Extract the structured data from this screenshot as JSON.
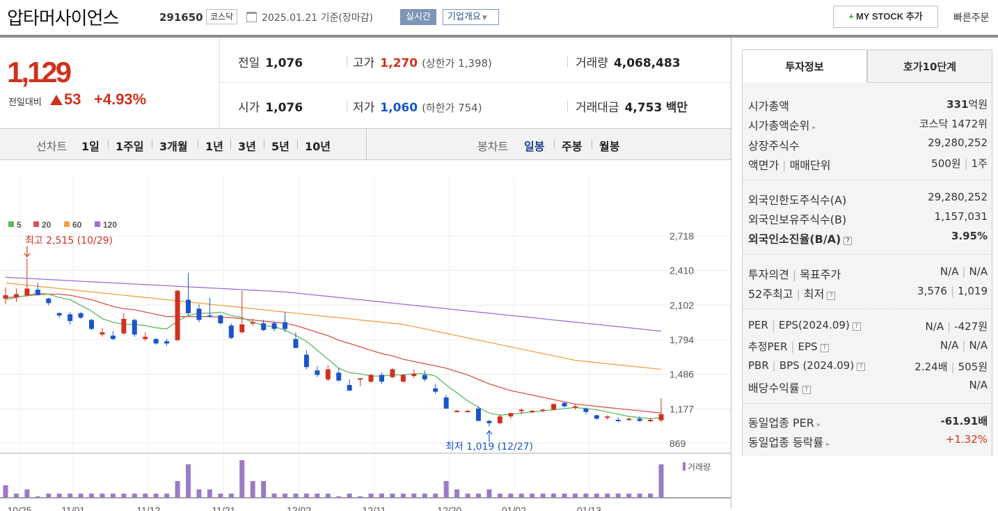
{
  "header": {
    "stock_name": "압타머사이언스",
    "stock_code": "291650",
    "market_badge": "코스닥",
    "date": "2025.01.21 기준(장마감)",
    "realtime_label": "실시간",
    "company_label": "기업개요",
    "mystock_label": "MY STOCK 추가",
    "quick_order_label": "빠른주문"
  },
  "price": {
    "current": "1,129",
    "change_label": "전일대비",
    "change_value": "53",
    "change_pct": "+4.93%",
    "color_up": "#d0311e",
    "color_down": "#1a55c8"
  },
  "quotes": {
    "prev_close_label": "전일",
    "prev_close": "1,076",
    "high_label": "고가",
    "high": "1,270",
    "upper_limit": "(상한가 1,398)",
    "volume_label": "거래량",
    "volume": "4,068,483",
    "open_label": "시가",
    "open": "1,076",
    "low_label": "저가",
    "low": "1,060",
    "lower_limit": "(하한가 754)",
    "amount_label": "거래대금",
    "amount": "4,753",
    "amount_unit": "백만"
  },
  "controls": {
    "line_chart_label": "선차트",
    "periods": [
      "1일",
      "1주일",
      "3개월",
      "1년",
      "3년",
      "5년",
      "10년"
    ],
    "candle_label": "봉차트",
    "candle_types": [
      "일봉",
      "주봉",
      "월봉"
    ],
    "selected_candle": "일봉"
  },
  "chart_data": {
    "type": "candlestick",
    "legend": [
      {
        "name": "5",
        "color": "#5cb85c"
      },
      {
        "name": "20",
        "color": "#d9534f"
      },
      {
        "name": "60",
        "color": "#f0a040"
      },
      {
        "name": "120",
        "color": "#9b6fd6"
      }
    ],
    "y_ticks": [
      "2,718",
      "2,410",
      "2,102",
      "1,794",
      "1,486",
      "1,177",
      "869"
    ],
    "y_tick_values": [
      2718,
      2410,
      2102,
      1794,
      1486,
      1177,
      869
    ],
    "x_ticks": [
      "10/25",
      "11/01",
      "11/12",
      "11/21",
      "12/02",
      "12/11",
      "12/20",
      "01/02",
      "01/13"
    ],
    "annotation_high": "최고 2,515 (10/29)",
    "annotation_low": "최저 1,019 (12/27)",
    "volume_label": "거래량",
    "candles": [
      [
        2160,
        2260,
        2110,
        2190
      ],
      [
        2170,
        2250,
        2130,
        2200
      ],
      [
        2190,
        2515,
        2180,
        2250
      ],
      [
        2240,
        2300,
        2190,
        2190
      ],
      [
        2160,
        2170,
        2100,
        2120
      ],
      [
        2030,
        2040,
        1990,
        2010
      ],
      [
        2020,
        2040,
        1930,
        1960
      ],
      [
        2030,
        2040,
        1980,
        1990
      ],
      [
        1970,
        1980,
        1880,
        1890
      ],
      [
        1840,
        1900,
        1820,
        1860
      ],
      [
        1830,
        1870,
        1790,
        1800
      ],
      [
        1850,
        2030,
        1840,
        1980
      ],
      [
        1970,
        1980,
        1820,
        1840
      ],
      [
        1800,
        1860,
        1780,
        1820
      ],
      [
        1800,
        1810,
        1750,
        1760
      ],
      [
        1780,
        1800,
        1740,
        1760
      ],
      [
        1790,
        2240,
        1780,
        2230
      ],
      [
        2150,
        2390,
        2010,
        2030
      ],
      [
        2070,
        2110,
        1950,
        1970
      ],
      [
        2010,
        2170,
        1990,
        2000
      ],
      [
        2010,
        2020,
        1930,
        1940
      ],
      [
        1920,
        1940,
        1800,
        1810
      ],
      [
        1860,
        2230,
        1850,
        1930
      ],
      [
        1940,
        1980,
        1920,
        1950
      ],
      [
        1940,
        1970,
        1870,
        1880
      ],
      [
        1940,
        1960,
        1870,
        1890
      ],
      [
        1950,
        2040,
        1860,
        1890
      ],
      [
        1800,
        1860,
        1720,
        1720
      ],
      [
        1660,
        1700,
        1530,
        1550
      ],
      [
        1520,
        1560,
        1460,
        1480
      ],
      [
        1440,
        1570,
        1420,
        1530
      ],
      [
        1500,
        1540,
        1420,
        1430
      ],
      [
        1390,
        1440,
        1340,
        1340
      ],
      [
        1440,
        1450,
        1380,
        1450
      ],
      [
        1420,
        1490,
        1410,
        1480
      ],
      [
        1480,
        1500,
        1400,
        1420
      ],
      [
        1460,
        1540,
        1450,
        1530
      ],
      [
        1420,
        1490,
        1410,
        1480
      ],
      [
        1470,
        1530,
        1450,
        1490
      ],
      [
        1480,
        1520,
        1420,
        1440
      ],
      [
        1360,
        1400,
        1310,
        1330
      ],
      [
        1280,
        1300,
        1180,
        1180
      ],
      [
        1160,
        1170,
        1150,
        1160
      ],
      [
        1160,
        1170,
        1150,
        1160
      ],
      [
        1180,
        1200,
        1070,
        1070
      ],
      [
        1070,
        1080,
        1019,
        1050
      ],
      [
        1050,
        1130,
        1040,
        1110
      ],
      [
        1110,
        1140,
        1090,
        1140
      ],
      [
        1160,
        1180,
        1130,
        1170
      ],
      [
        1160,
        1170,
        1140,
        1160
      ],
      [
        1170,
        1180,
        1150,
        1170
      ],
      [
        1170,
        1230,
        1160,
        1220
      ],
      [
        1230,
        1240,
        1190,
        1200
      ],
      [
        1190,
        1220,
        1170,
        1200
      ],
      [
        1180,
        1190,
        1130,
        1150
      ],
      [
        1120,
        1130,
        1080,
        1090
      ],
      [
        1110,
        1120,
        1080,
        1110
      ],
      [
        1080,
        1100,
        1060,
        1070
      ],
      [
        1080,
        1100,
        1070,
        1090
      ],
      [
        1090,
        1110,
        1060,
        1070
      ],
      [
        1080,
        1100,
        1060,
        1080
      ],
      [
        1076,
        1270,
        1060,
        1129
      ]
    ],
    "volume": [
      3,
      1,
      2,
      0,
      1,
      1,
      1,
      1,
      1,
      1,
      1,
      1,
      1,
      1,
      1,
      1,
      4,
      8,
      2,
      2,
      1,
      1,
      9,
      4,
      4,
      1,
      1,
      1,
      1,
      1,
      1,
      0,
      1,
      0,
      1,
      1,
      1,
      1,
      1,
      1,
      1,
      4,
      2,
      1,
      1,
      2,
      1,
      1,
      1,
      1,
      1,
      1,
      1,
      1,
      1,
      1,
      1,
      1,
      1,
      1,
      1,
      8
    ],
    "ma5": [
      2150,
      2170,
      2190,
      2210,
      2200,
      2170,
      2150,
      2100,
      2050,
      1980,
      1950,
      1930,
      1930,
      1920,
      1900,
      1890,
      1960,
      2010,
      2030,
      2030,
      2040,
      2010,
      1990,
      1950,
      1920,
      1910,
      1880,
      1830,
      1780,
      1700,
      1620,
      1540,
      1500,
      1490,
      1470,
      1470,
      1480,
      1480,
      1490,
      1490,
      1470,
      1390,
      1320,
      1250,
      1190,
      1140,
      1120,
      1130,
      1140,
      1150,
      1160,
      1170,
      1180,
      1190,
      1180,
      1170,
      1150,
      1130,
      1110,
      1100,
      1090,
      1100
    ],
    "ma20": [
      2170,
      2175,
      2185,
      2195,
      2200,
      2200,
      2190,
      2170,
      2150,
      2120,
      2090,
      2070,
      2060,
      2040,
      2020,
      2000,
      2000,
      2000,
      2000,
      2000,
      1995,
      1990,
      1980,
      1970,
      1960,
      1950,
      1940,
      1920,
      1890,
      1860,
      1830,
      1790,
      1760,
      1730,
      1700,
      1670,
      1650,
      1620,
      1600,
      1580,
      1560,
      1540,
      1510,
      1480,
      1440,
      1400,
      1370,
      1340,
      1320,
      1300,
      1280,
      1260,
      1240,
      1220,
      1210,
      1200,
      1190,
      1180,
      1170,
      1160,
      1150,
      1140
    ],
    "ma60": [
      2300,
      2290,
      2280,
      2270,
      2260,
      2250,
      2240,
      2230,
      2220,
      2210,
      2200,
      2190,
      2180,
      2170,
      2160,
      2150,
      2140,
      2130,
      2120,
      2110,
      2100,
      2090,
      2080,
      2070,
      2060,
      2050,
      2040,
      2030,
      2020,
      2010,
      2000,
      1990,
      1980,
      1970,
      1960,
      1950,
      1940,
      1930,
      1910,
      1890,
      1870,
      1850,
      1830,
      1810,
      1790,
      1770,
      1750,
      1730,
      1710,
      1690,
      1670,
      1650,
      1630,
      1610,
      1600,
      1590,
      1580,
      1570,
      1560,
      1550,
      1540,
      1530
    ],
    "ma120": [
      2350,
      2345,
      2340,
      2335,
      2330,
      2325,
      2320,
      2315,
      2310,
      2305,
      2300,
      2295,
      2290,
      2285,
      2280,
      2275,
      2270,
      2265,
      2260,
      2255,
      2250,
      2245,
      2240,
      2235,
      2230,
      2225,
      2220,
      2210,
      2200,
      2190,
      2180,
      2170,
      2160,
      2150,
      2140,
      2130,
      2120,
      2110,
      2100,
      2090,
      2080,
      2070,
      2060,
      2050,
      2040,
      2030,
      2020,
      2010,
      2000,
      1990,
      1980,
      1970,
      1960,
      1950,
      1940,
      1930,
      1920,
      1910,
      1900,
      1890,
      1880,
      1870
    ]
  },
  "info": {
    "tab_active": "투자정보",
    "tab_other": "호가10단계",
    "market_cap_label": "시가총액",
    "market_cap_value": "331",
    "market_cap_unit": "억원",
    "rank_label": "시가총액순위",
    "rank_value": "코스닥 1472위",
    "shares_label": "상장주식수",
    "shares_value": "29,280,252",
    "par_label": "액면가",
    "unit_label": "매매단위",
    "par_value": "500원",
    "unit_value": "1주",
    "foreign_limit_label": "외국인한도주식수(A)",
    "foreign_limit_value": "29,280,252",
    "foreign_hold_label": "외국인보유주식수(B)",
    "foreign_hold_value": "1,157,031",
    "foreign_ratio_label": "외국인소진율(B/A)",
    "foreign_ratio_value": "3.95%",
    "opinion_label": "투자의견",
    "target_label": "목표주가",
    "opinion_value": "N/A",
    "target_value": "N/A",
    "w52_high_label": "52주최고",
    "w52_low_label": "최저",
    "w52_high_value": "3,576",
    "w52_low_value": "1,019",
    "per_label": "PER",
    "eps_label": "EPS(2024.09)",
    "per_value": "N/A",
    "eps_value": "-427원",
    "est_per_label": "추정PER",
    "est_eps_label": "EPS",
    "est_per_value": "N/A",
    "est_eps_value": "N/A",
    "pbr_label": "PBR",
    "bps_label": "BPS (2024.09)",
    "pbr_value": "2.24배",
    "bps_value": "505원",
    "div_label": "배당수익률",
    "div_value": "N/A",
    "sector_per_label": "동일업종 PER",
    "sector_per_value": "-61.91배",
    "sector_chg_label": "동일업종 등락률",
    "sector_chg_value": "+1.32%"
  }
}
